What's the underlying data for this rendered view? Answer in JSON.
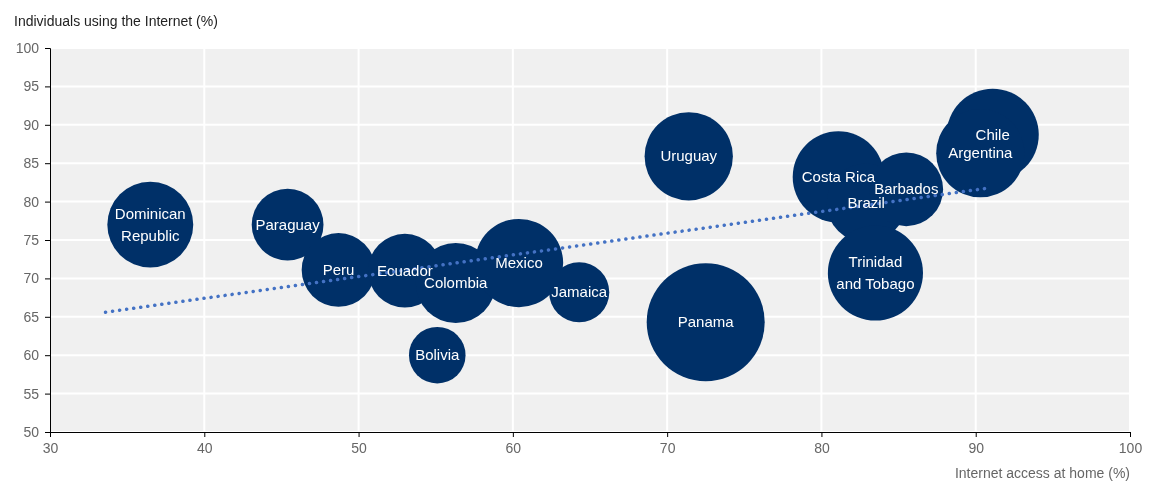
{
  "chart_data": {
    "type": "bubble",
    "xlabel": "Internet access at home (%)",
    "ylabel": "Individuals using the Internet (%)",
    "xlim": [
      30,
      100
    ],
    "xticks": [
      30,
      40,
      50,
      60,
      70,
      80,
      90,
      100
    ],
    "ylim": [
      50,
      100
    ],
    "yticks": [
      50,
      55,
      60,
      65,
      70,
      75,
      80,
      85,
      90,
      95,
      100
    ],
    "grid": true,
    "series": [
      {
        "color": "#003068",
        "x": [
          36.5,
          45.4,
          48.7,
          53.0,
          56.3,
          60.4,
          64.3,
          55.1,
          71.4,
          72.5,
          81.1,
          82.9,
          85.5,
          83.5,
          91.1,
          90.3
        ],
        "values": [
          77.0,
          77.0,
          71.1,
          71.0,
          69.4,
          72.0,
          68.2,
          60.0,
          85.9,
          64.3,
          83.2,
          79.8,
          81.6,
          70.7,
          88.7,
          86.3
        ],
        "sizes": [
          0.53,
          0.37,
          0.39,
          0.39,
          0.46,
          0.56,
          0.26,
          0.23,
          0.56,
          1,
          0.6,
          0.45,
          0.39,
          0.65,
          0.61,
          0.56
        ]
      },
      {
        "type": "line",
        "color": "#4472c4",
        "line_style": "dotted",
        "x": [
          33.6,
          90.6
        ],
        "values": [
          65.6,
          81.7
        ]
      }
    ],
    "annotations": [
      {
        "text": "Dominican Republic",
        "x": 36.5,
        "y": 77.0
      },
      {
        "text": "Paraguay",
        "x": 45.4,
        "y": 77.0
      },
      {
        "text": "Peru",
        "x": 48.7,
        "y": 71.1
      },
      {
        "text": "Ecuador",
        "x": 53.0,
        "y": 71.0
      },
      {
        "text": "Colombia",
        "x": 56.3,
        "y": 69.4
      },
      {
        "text": "Mexico",
        "x": 60.4,
        "y": 72.0
      },
      {
        "text": "Jamaica",
        "x": 64.3,
        "y": 68.2
      },
      {
        "text": "Bolivia",
        "x": 55.1,
        "y": 60.0
      },
      {
        "text": "Uruguay",
        "x": 71.4,
        "y": 85.9
      },
      {
        "text": "Panama",
        "x": 72.5,
        "y": 64.3
      },
      {
        "text": "Costa Rica",
        "x": 81.1,
        "y": 83.2
      },
      {
        "text": "Brazil",
        "x": 82.9,
        "y": 79.8
      },
      {
        "text": "Barbados",
        "x": 85.5,
        "y": 81.6
      },
      {
        "text": "Trinidad and Tobago",
        "x": 83.5,
        "y": 70.7
      },
      {
        "text": "Chile",
        "x": 91.1,
        "y": 88.7
      },
      {
        "text": "Argentina",
        "x": 90.3,
        "y": 86.3
      }
    ]
  }
}
